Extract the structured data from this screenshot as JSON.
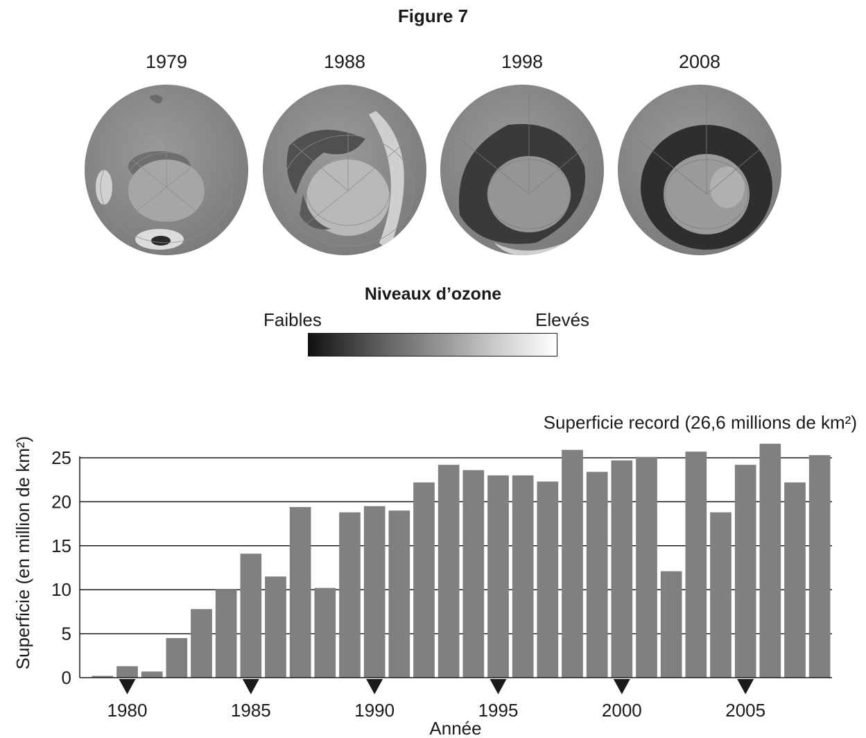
{
  "figure": {
    "title": "Figure 7"
  },
  "globes": [
    {
      "year": "1979"
    },
    {
      "year": "1988"
    },
    {
      "year": "1998"
    },
    {
      "year": "2008"
    }
  ],
  "legend": {
    "title": "Niveaux d’ozone",
    "low": "Faibles",
    "high": "Elevés",
    "gradient_colors": [
      "#111111",
      "#ffffff"
    ]
  },
  "chart_data": {
    "type": "bar",
    "categories": [
      "1979",
      "1980",
      "1981",
      "1982",
      "1983",
      "1984",
      "1985",
      "1986",
      "1987",
      "1988",
      "1989",
      "1990",
      "1991",
      "1992",
      "1993",
      "1994",
      "1995",
      "1996",
      "1997",
      "1998",
      "1999",
      "2000",
      "2001",
      "2002",
      "2003",
      "2004",
      "2005",
      "2006",
      "2007",
      "2008"
    ],
    "values": [
      0.2,
      1.3,
      0.7,
      4.5,
      7.8,
      10.0,
      14.1,
      11.5,
      19.4,
      10.2,
      18.8,
      19.5,
      19.0,
      22.2,
      24.2,
      23.6,
      23.0,
      23.0,
      22.3,
      25.9,
      23.4,
      24.7,
      25.1,
      12.1,
      25.7,
      18.8,
      24.2,
      26.6,
      22.2,
      25.3
    ],
    "xticks": [
      "1980",
      "1985",
      "1990",
      "1995",
      "2000",
      "2005"
    ],
    "yticks": [
      0,
      5,
      10,
      15,
      20,
      25
    ],
    "xlabel": "Année",
    "ylabel": "Superficie (en million de km²)",
    "annotation": "Superficie record (26,6 millions de km²)",
    "ylim": [
      0,
      27
    ],
    "grid": "horizontal",
    "bar_color": "#808080"
  }
}
